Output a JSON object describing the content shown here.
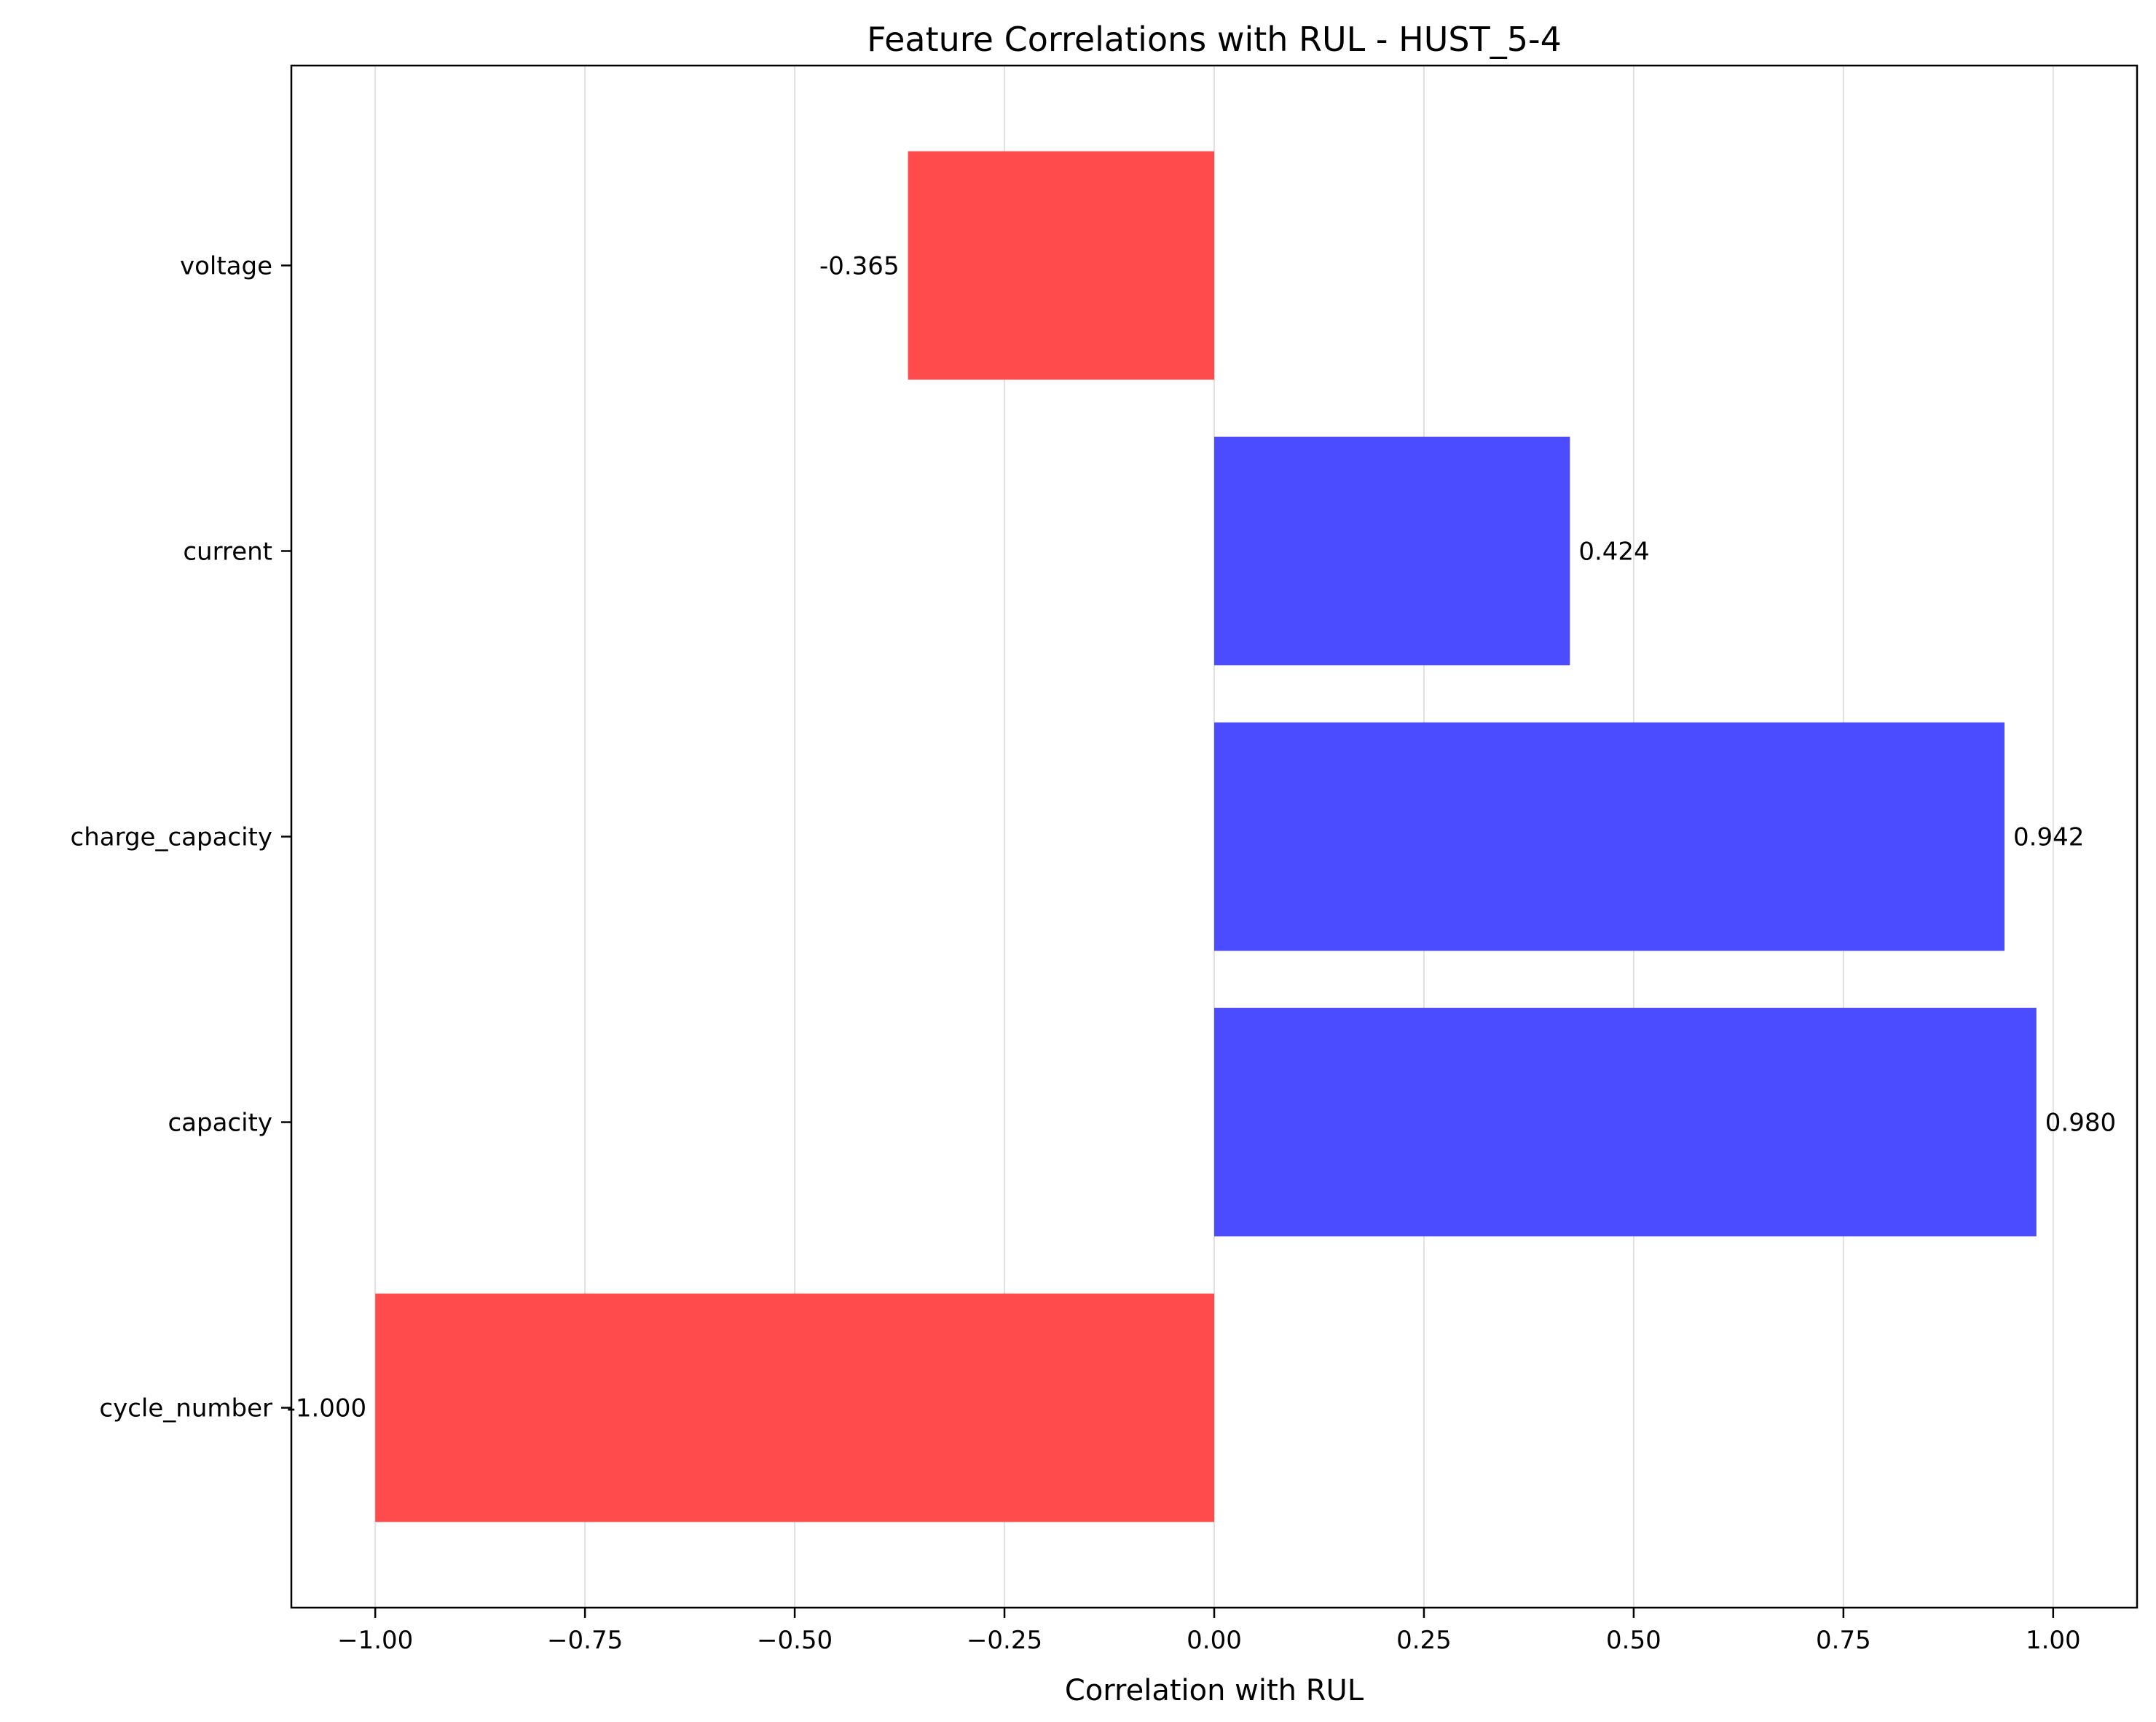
{
  "chart_data": {
    "type": "bar",
    "orientation": "horizontal",
    "title": "Feature Correlations with RUL - HUST_5-4",
    "xlabel": "Correlation with RUL",
    "ylabel": "",
    "categories": [
      "cycle_number",
      "capacity",
      "charge_capacity",
      "current",
      "voltage"
    ],
    "values": [
      -1.0,
      0.98,
      0.942,
      0.424,
      -0.365
    ],
    "value_labels": [
      "-1.000",
      "0.980",
      "0.942",
      "0.424",
      "-0.365"
    ],
    "xlim": [
      -1.1,
      1.1
    ],
    "xticks": [
      -1.0,
      -0.75,
      -0.5,
      -0.25,
      0.0,
      0.25,
      0.5,
      0.75,
      1.0
    ],
    "xtick_labels": [
      "−1.00",
      "−0.75",
      "−0.50",
      "−0.25",
      "0.00",
      "0.25",
      "0.50",
      "0.75",
      "1.00"
    ],
    "grid": "x",
    "colors": {
      "positive": "#4b4bff",
      "negative": "#ff4b4b",
      "grid": "#e0e0e0",
      "axes": "#000000"
    }
  }
}
